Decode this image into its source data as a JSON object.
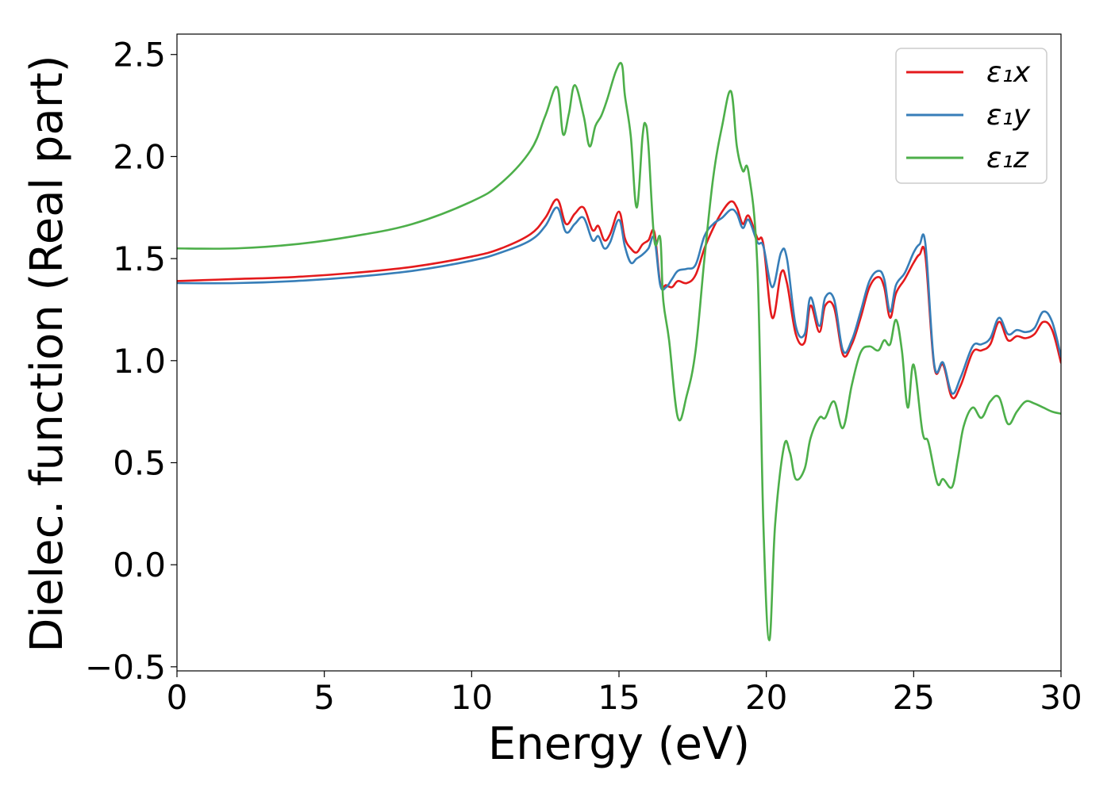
{
  "chart_data": {
    "type": "line",
    "title": "",
    "xlabel": "Energy (eV)",
    "ylabel": "Dielec. function (Real part)",
    "xlim": [
      0,
      30
    ],
    "ylim": [
      -0.52,
      2.6
    ],
    "xticks": [
      0,
      5,
      10,
      15,
      20,
      25,
      30
    ],
    "xtick_labels": [
      "0",
      "5",
      "10",
      "15",
      "20",
      "25",
      "30"
    ],
    "yticks": [
      -0.5,
      0.0,
      0.5,
      1.0,
      1.5,
      2.0,
      2.5
    ],
    "ytick_labels": [
      "−0.5",
      "0.0",
      "0.5",
      "1.0",
      "1.5",
      "2.0",
      "2.5"
    ],
    "grid": false,
    "legend_position": "top-right",
    "series": [
      {
        "name": "ε₁x",
        "color": "#e41a1c",
        "x": [
          0,
          2,
          4,
          6,
          8,
          10,
          11,
          12,
          12.5,
          12.9,
          13.2,
          13.5,
          13.8,
          14.1,
          14.3,
          14.5,
          14.7,
          15.0,
          15.2,
          15.4,
          15.6,
          15.8,
          16.0,
          16.2,
          16.4,
          16.6,
          16.8,
          17.0,
          17.3,
          17.6,
          17.9,
          18.2,
          18.5,
          18.8,
          19.0,
          19.2,
          19.4,
          19.7,
          19.9,
          20.2,
          20.5,
          20.7,
          21.0,
          21.3,
          21.5,
          21.8,
          22.0,
          22.3,
          22.6,
          22.9,
          23.2,
          23.5,
          23.8,
          24.0,
          24.2,
          24.4,
          24.7,
          25.0,
          25.2,
          25.4,
          25.7,
          26.0,
          26.3,
          26.6,
          27.0,
          27.3,
          27.6,
          27.9,
          28.2,
          28.5,
          28.8,
          29.1,
          29.4,
          29.7,
          30.0
        ],
        "values": [
          1.39,
          1.4,
          1.41,
          1.43,
          1.46,
          1.51,
          1.55,
          1.62,
          1.7,
          1.79,
          1.67,
          1.72,
          1.75,
          1.64,
          1.66,
          1.59,
          1.62,
          1.73,
          1.6,
          1.55,
          1.53,
          1.57,
          1.59,
          1.63,
          1.38,
          1.37,
          1.36,
          1.39,
          1.38,
          1.42,
          1.55,
          1.65,
          1.73,
          1.78,
          1.75,
          1.67,
          1.71,
          1.6,
          1.57,
          1.21,
          1.43,
          1.38,
          1.13,
          1.09,
          1.27,
          1.14,
          1.27,
          1.26,
          1.03,
          1.08,
          1.21,
          1.36,
          1.41,
          1.36,
          1.21,
          1.33,
          1.4,
          1.48,
          1.52,
          1.51,
          0.97,
          0.98,
          0.82,
          0.88,
          1.04,
          1.05,
          1.08,
          1.19,
          1.1,
          1.12,
          1.11,
          1.13,
          1.19,
          1.15,
          0.99
        ]
      },
      {
        "name": "ε₁y",
        "color": "#377eb8",
        "x": [
          0,
          2,
          4,
          6,
          8,
          10,
          11,
          12,
          12.5,
          12.9,
          13.2,
          13.5,
          13.8,
          14.1,
          14.3,
          14.5,
          14.7,
          15.0,
          15.2,
          15.4,
          15.6,
          15.8,
          16.0,
          16.2,
          16.4,
          16.6,
          16.8,
          17.0,
          17.3,
          17.6,
          17.9,
          18.2,
          18.5,
          18.8,
          19.0,
          19.2,
          19.4,
          19.7,
          19.9,
          20.2,
          20.5,
          20.7,
          21.0,
          21.3,
          21.5,
          21.8,
          22.0,
          22.3,
          22.6,
          22.9,
          23.2,
          23.5,
          23.8,
          24.0,
          24.2,
          24.4,
          24.7,
          25.0,
          25.2,
          25.4,
          25.7,
          26.0,
          26.3,
          26.6,
          27.0,
          27.3,
          27.6,
          27.9,
          28.2,
          28.5,
          28.8,
          29.1,
          29.4,
          29.7,
          30.0
        ],
        "values": [
          1.38,
          1.38,
          1.39,
          1.41,
          1.44,
          1.49,
          1.53,
          1.59,
          1.66,
          1.75,
          1.63,
          1.67,
          1.7,
          1.59,
          1.61,
          1.55,
          1.58,
          1.69,
          1.56,
          1.48,
          1.5,
          1.52,
          1.55,
          1.6,
          1.37,
          1.36,
          1.4,
          1.44,
          1.45,
          1.47,
          1.61,
          1.67,
          1.7,
          1.74,
          1.72,
          1.65,
          1.69,
          1.58,
          1.56,
          1.36,
          1.53,
          1.5,
          1.17,
          1.13,
          1.31,
          1.17,
          1.31,
          1.3,
          1.05,
          1.1,
          1.24,
          1.39,
          1.44,
          1.4,
          1.24,
          1.37,
          1.43,
          1.53,
          1.57,
          1.57,
          0.98,
          0.99,
          0.84,
          0.92,
          1.07,
          1.08,
          1.11,
          1.21,
          1.13,
          1.15,
          1.14,
          1.16,
          1.24,
          1.19,
          1.02
        ]
      },
      {
        "name": "ε₁z",
        "color": "#4daf4a",
        "x": [
          0,
          2,
          4,
          6,
          8,
          10,
          11,
          12,
          12.5,
          12.9,
          13.1,
          13.3,
          13.5,
          13.8,
          14.0,
          14.2,
          14.4,
          14.6,
          14.9,
          15.1,
          15.2,
          15.4,
          15.6,
          15.8,
          15.9,
          16.0,
          16.2,
          16.4,
          16.5,
          16.7,
          17.0,
          17.3,
          17.6,
          17.9,
          18.2,
          18.5,
          18.8,
          19.0,
          19.2,
          19.4,
          19.7,
          19.9,
          20.1,
          20.3,
          20.6,
          20.8,
          21.0,
          21.3,
          21.5,
          21.8,
          22.0,
          22.3,
          22.6,
          22.9,
          23.2,
          23.5,
          23.8,
          24.0,
          24.2,
          24.4,
          24.6,
          24.8,
          25.0,
          25.3,
          25.5,
          25.8,
          26.0,
          26.3,
          26.5,
          26.7,
          27.0,
          27.3,
          27.6,
          27.9,
          28.2,
          28.5,
          28.8,
          29.1,
          29.4,
          29.7,
          30.0
        ],
        "values": [
          1.55,
          1.55,
          1.57,
          1.61,
          1.67,
          1.78,
          1.87,
          2.03,
          2.2,
          2.34,
          2.11,
          2.21,
          2.35,
          2.2,
          2.05,
          2.15,
          2.2,
          2.28,
          2.42,
          2.45,
          2.3,
          2.1,
          1.75,
          2.1,
          2.16,
          2.05,
          1.59,
          1.6,
          1.3,
          1.1,
          0.72,
          0.83,
          1.05,
          1.5,
          1.9,
          2.15,
          2.32,
          2.05,
          1.93,
          1.92,
          1.45,
          0.2,
          -0.37,
          0.2,
          0.58,
          0.55,
          0.42,
          0.47,
          0.62,
          0.72,
          0.72,
          0.8,
          0.67,
          0.88,
          1.04,
          1.07,
          1.05,
          1.1,
          1.08,
          1.2,
          1.05,
          0.77,
          0.98,
          0.65,
          0.6,
          0.4,
          0.42,
          0.38,
          0.52,
          0.68,
          0.77,
          0.72,
          0.8,
          0.82,
          0.69,
          0.75,
          0.8,
          0.79,
          0.77,
          0.75,
          0.74
        ]
      }
    ]
  }
}
